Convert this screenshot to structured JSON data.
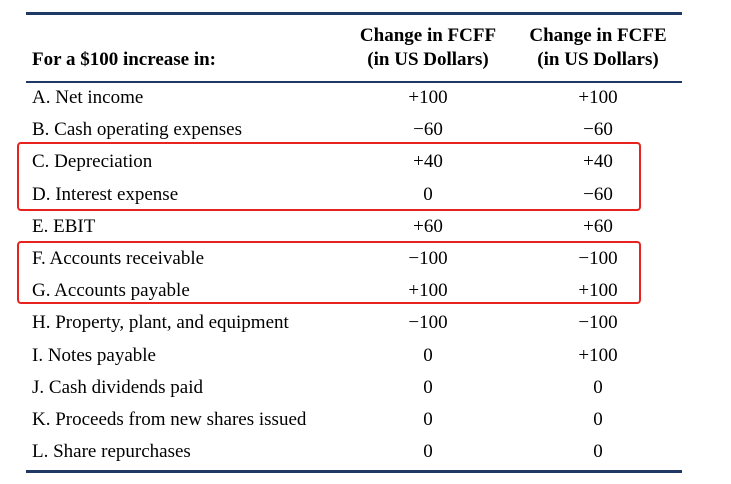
{
  "table": {
    "header": {
      "left": "For a $100 increase in:",
      "col1_line1": "Change in FCFF",
      "col1_line2": "(in US Dollars)",
      "col2_line1": "Change in FCFE",
      "col2_line2": "(in US Dollars)"
    },
    "rows": [
      {
        "label": "A. Net income",
        "fcff": "+100",
        "fcfe": "+100"
      },
      {
        "label": "B. Cash operating expenses",
        "fcff": "−60",
        "fcfe": "−60"
      },
      {
        "label": "C. Depreciation",
        "fcff": "+40",
        "fcfe": "+40"
      },
      {
        "label": "D. Interest expense",
        "fcff": "0",
        "fcfe": "−60"
      },
      {
        "label": "E. EBIT",
        "fcff": "+60",
        "fcfe": "+60"
      },
      {
        "label": "F. Accounts receivable",
        "fcff": "−100",
        "fcfe": "−100"
      },
      {
        "label": "G. Accounts payable",
        "fcff": "+100",
        "fcfe": "+100"
      },
      {
        "label": "H. Property, plant, and equipment",
        "fcff": "−100",
        "fcfe": "−100"
      },
      {
        "label": "I. Notes payable",
        "fcff": "0",
        "fcfe": "+100"
      },
      {
        "label": "J. Cash dividends paid",
        "fcff": "0",
        "fcfe": "0"
      },
      {
        "label": "K. Proceeds from new shares issued",
        "fcff": "0",
        "fcfe": "0"
      },
      {
        "label": "L. Share repurchases",
        "fcff": "0",
        "fcfe": "0"
      }
    ]
  },
  "colors": {
    "rule": "#1f3864",
    "highlight": "#e8231f"
  }
}
